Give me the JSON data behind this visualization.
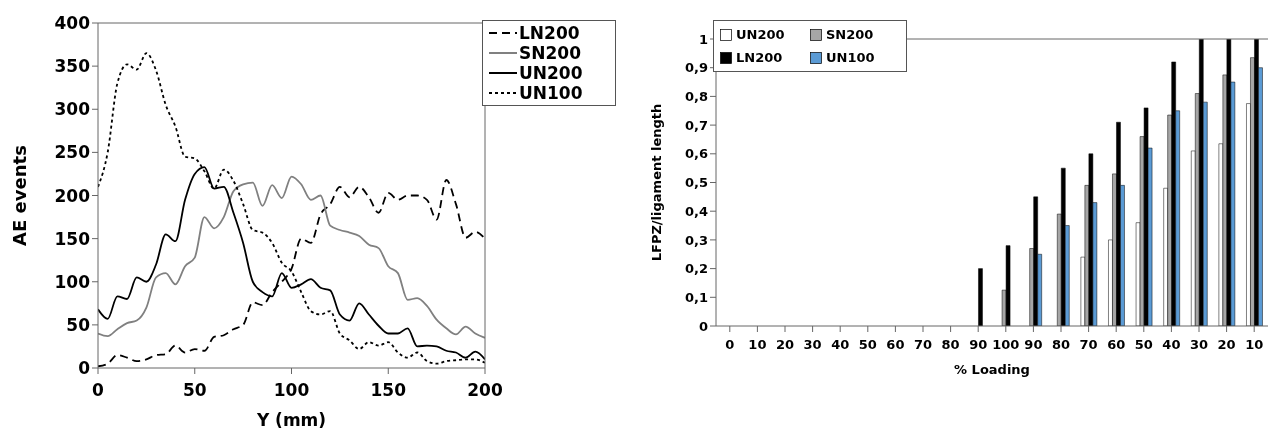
{
  "chart_data": [
    {
      "type": "line",
      "xlabel": "Y (mm)",
      "ylabel": "AE events",
      "xlim": [
        0,
        200
      ],
      "xticks": [
        0,
        50,
        100,
        150,
        200
      ],
      "ylim": [
        0,
        400
      ],
      "yticks": [
        0,
        50,
        100,
        150,
        200,
        250,
        300,
        350,
        400
      ],
      "grid": false,
      "legend": "top right",
      "marker": "none",
      "x": [
        0,
        5,
        10,
        15,
        20,
        25,
        30,
        35,
        40,
        45,
        50,
        55,
        60,
        65,
        70,
        75,
        80,
        85,
        90,
        95,
        100,
        105,
        110,
        115,
        120,
        125,
        130,
        135,
        140,
        145,
        150,
        155,
        160,
        165,
        170,
        175,
        180,
        185,
        190,
        195,
        200
      ],
      "series": [
        {
          "name": "LN200",
          "color": "#000000",
          "line_style": "dashed",
          "values": [
            2,
            5,
            15,
            12,
            8,
            10,
            15,
            16,
            26,
            18,
            22,
            20,
            36,
            38,
            45,
            50,
            76,
            73,
            88,
            100,
            115,
            150,
            145,
            178,
            190,
            210,
            198,
            210,
            198,
            180,
            203,
            195,
            200,
            200,
            195,
            172,
            218,
            190,
            151,
            158,
            150
          ]
        },
        {
          "name": "SN200",
          "color": "#808080",
          "line_style": "solid",
          "values": [
            40,
            37,
            45,
            52,
            55,
            70,
            105,
            110,
            97,
            118,
            128,
            175,
            162,
            175,
            205,
            213,
            215,
            188,
            212,
            197,
            222,
            213,
            195,
            200,
            165,
            160,
            157,
            153,
            143,
            139,
            118,
            110,
            79,
            81,
            72,
            56,
            46,
            39,
            48,
            40,
            35
          ]
        },
        {
          "name": "UN200",
          "color": "#000000",
          "line_style": "solid",
          "values": [
            68,
            57,
            83,
            80,
            105,
            100,
            120,
            155,
            147,
            195,
            225,
            233,
            208,
            210,
            180,
            145,
            100,
            88,
            83,
            110,
            93,
            97,
            103,
            93,
            90,
            62,
            55,
            75,
            62,
            49,
            40,
            40,
            46,
            25,
            26,
            25,
            20,
            18,
            12,
            19,
            10
          ]
        },
        {
          "name": "UN100",
          "color": "#000000",
          "line_style": "dotted",
          "values": [
            210,
            250,
            330,
            352,
            346,
            365,
            345,
            305,
            280,
            245,
            243,
            228,
            208,
            230,
            217,
            190,
            160,
            157,
            145,
            122,
            112,
            88,
            66,
            62,
            66,
            40,
            32,
            22,
            30,
            26,
            30,
            18,
            12,
            18,
            8,
            5,
            8,
            9,
            10,
            10,
            6
          ]
        }
      ]
    },
    {
      "type": "bar",
      "xlabel": "% Loading",
      "ylabel": "LFPZ/ligament length",
      "ylim": [
        0,
        1
      ],
      "yticks": [
        0,
        {
          "value": 0.1,
          "label": "0,1"
        },
        {
          "value": 0.2,
          "label": "0,2"
        },
        {
          "value": 0.3,
          "label": "0,3"
        },
        {
          "value": 0.4,
          "label": "0,4"
        },
        {
          "value": 0.5,
          "label": "0,5"
        },
        {
          "value": 0.6,
          "label": "0,6"
        },
        {
          "value": 0.7,
          "label": "0,7"
        },
        {
          "value": 0.8,
          "label": "0,8"
        },
        {
          "value": 0.9,
          "label": "0,9"
        },
        1
      ],
      "grid": false,
      "legend": "top left",
      "categories": [
        "0",
        "10",
        "20",
        "30",
        "40",
        "50",
        "60",
        "70",
        "80",
        "90",
        "100",
        "90",
        "80",
        "70",
        "60",
        "50",
        "40",
        "30",
        "20",
        "10"
      ],
      "series": [
        {
          "name": "UN200",
          "color": "#ffffff",
          "values": [
            null,
            null,
            null,
            null,
            null,
            null,
            null,
            null,
            null,
            null,
            null,
            null,
            null,
            0.24,
            0.3,
            0.36,
            0.48,
            0.61,
            0.635,
            0.775
          ]
        },
        {
          "name": "SN200",
          "color": "#a6a6a6",
          "values": [
            null,
            null,
            null,
            null,
            null,
            null,
            null,
            null,
            null,
            null,
            0.125,
            0.27,
            0.39,
            0.49,
            0.53,
            0.66,
            0.735,
            0.81,
            0.875,
            0.935
          ]
        },
        {
          "name": "LN200",
          "color": "#000000",
          "values": [
            null,
            null,
            null,
            null,
            null,
            null,
            null,
            null,
            null,
            0.2,
            0.28,
            0.45,
            0.55,
            0.6,
            0.71,
            0.76,
            0.92,
            1,
            1,
            1
          ]
        },
        {
          "name": "UN100",
          "color": "#5b9bd5",
          "values": [
            null,
            null,
            null,
            null,
            null,
            null,
            null,
            null,
            null,
            null,
            null,
            0.25,
            0.35,
            0.43,
            0.49,
            0.62,
            0.75,
            0.78,
            0.85,
            0.9
          ]
        }
      ]
    }
  ]
}
